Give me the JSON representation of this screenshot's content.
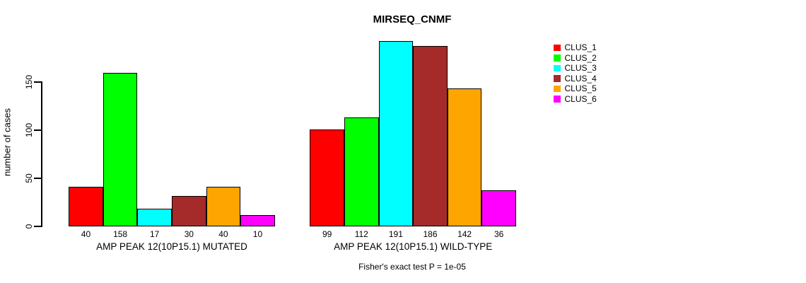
{
  "chart_data": {
    "type": "bar",
    "title": "MIRSEQ_CNMF",
    "ylabel": "number of cases",
    "annotation": "Fisher's exact test P = 1e-05",
    "ylim": [
      0,
      150
    ],
    "yticks": [
      0,
      50,
      100,
      150
    ],
    "grid": false,
    "legend_position": "right",
    "bar_value_labels_shown": true,
    "clusters": [
      {
        "label": "CLUS_1",
        "color": "#FF0000"
      },
      {
        "label": "CLUS_2",
        "color": "#00FF00"
      },
      {
        "label": "CLUS_3",
        "color": "#00FFFF"
      },
      {
        "label": "CLUS_4",
        "color": "#A52A2A"
      },
      {
        "label": "CLUS_5",
        "color": "#FFA500"
      },
      {
        "label": "CLUS_6",
        "color": "#FF00FF"
      }
    ],
    "groups": [
      {
        "label": "AMP PEAK 12(10P15.1) MUTATED",
        "values": [
          40,
          158,
          17,
          30,
          40,
          10
        ]
      },
      {
        "label": "AMP PEAK 12(10P15.1) WILD-TYPE",
        "values": [
          99,
          112,
          191,
          186,
          142,
          36
        ]
      }
    ]
  }
}
